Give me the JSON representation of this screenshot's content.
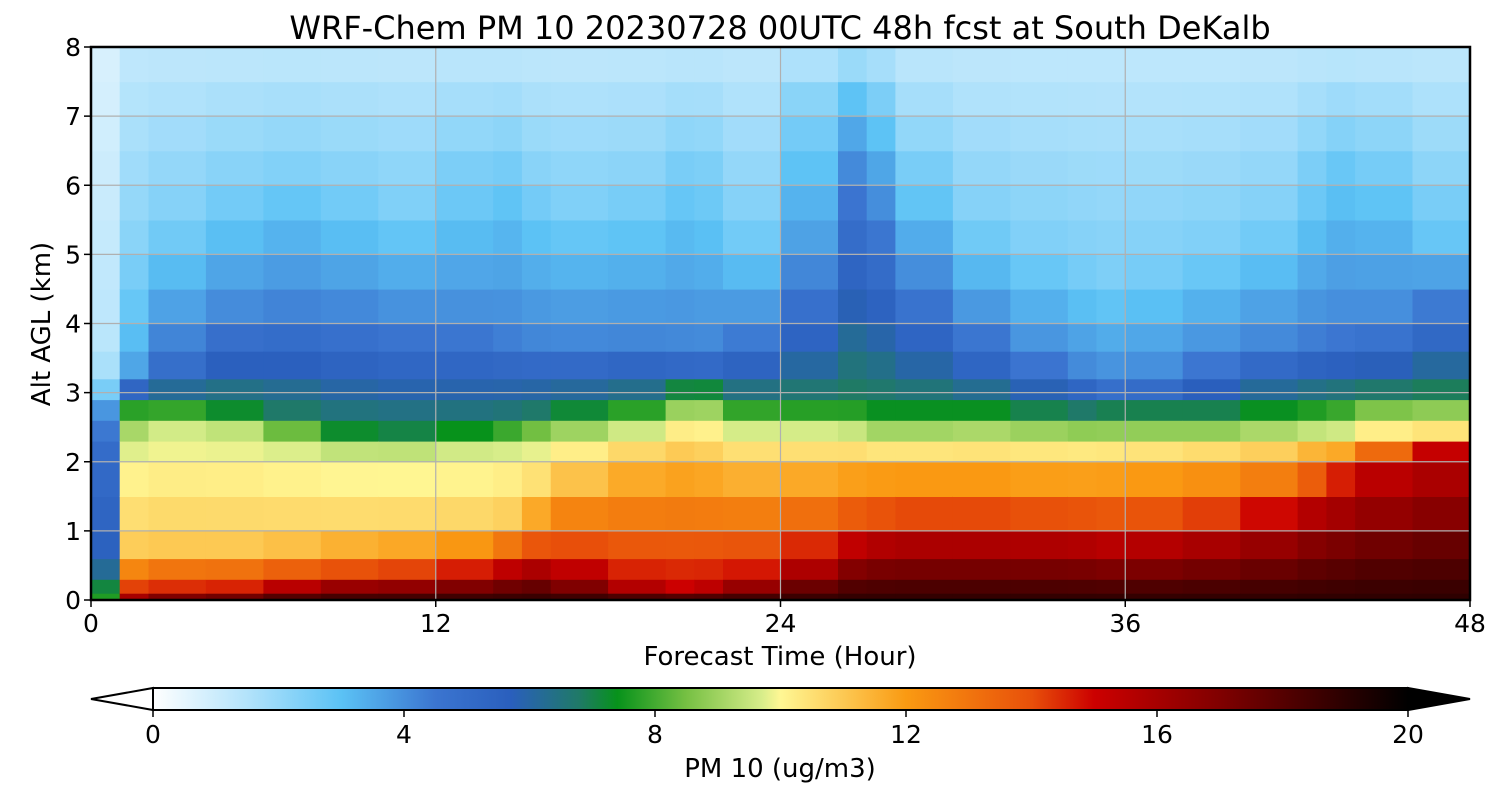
{
  "chart_data": {
    "type": "heatmap",
    "title": "WRF-Chem PM 10  20230728 00UTC 48h fcst at South DeKalb",
    "xlabel": "Forecast Time (Hour)",
    "ylabel": "Alt AGL (km)",
    "x_ticks": [
      "0",
      "12",
      "24",
      "36",
      "48"
    ],
    "y_ticks": [
      "0",
      "1",
      "2",
      "3",
      "4",
      "5",
      "6",
      "7",
      "8"
    ],
    "xlim": [
      0,
      48
    ],
    "ylim": [
      0,
      8
    ],
    "grid": true,
    "x": [
      0,
      1,
      2,
      4,
      6,
      8,
      10,
      12,
      14,
      15,
      16,
      18,
      20,
      21,
      22,
      24,
      26,
      27,
      28,
      30,
      32,
      34,
      35,
      36,
      38,
      40,
      42,
      43,
      44,
      46,
      48
    ],
    "y": [
      0,
      0.1,
      0.3,
      0.6,
      1.0,
      1.5,
      2.0,
      2.3,
      2.6,
      2.9,
      3.2,
      3.6,
      4.0,
      4.5,
      5.0,
      5.5,
      6.0,
      6.5,
      7.0,
      7.5,
      8.0
    ],
    "boundary_heights_km": {
      "red_top": [
        0,
        0.05,
        0.1,
        0.1,
        0.15,
        0.3,
        0.3,
        0.35,
        0.45,
        0.55,
        0.6,
        0.3,
        0.2,
        0.2,
        0.25,
        0.4,
        0.8,
        0.95,
        1.0,
        1.05,
        1.0,
        1.0,
        0.95,
        0.9,
        1.0,
        1.1,
        1.4,
        1.6,
        1.8,
        2.2,
        2.3
      ],
      "orange_top": [
        0,
        0.6,
        0.8,
        0.8,
        0.8,
        0.85,
        0.9,
        0.9,
        1.0,
        1.2,
        1.6,
        2.0,
        2.1,
        2.2,
        2.0,
        1.95,
        2.0,
        2.0,
        2.0,
        2.0,
        2.0,
        1.95,
        2.0,
        2.0,
        2.05,
        2.1,
        2.15,
        2.3,
        2.2,
        2.4,
        2.35
      ],
      "yellow_top": [
        0,
        2.2,
        2.5,
        2.5,
        2.4,
        2.2,
        2.1,
        2.15,
        2.2,
        2.25,
        2.3,
        2.4,
        2.55,
        2.9,
        2.5,
        2.45,
        2.5,
        2.4,
        2.3,
        2.4,
        2.35,
        2.35,
        2.3,
        2.35,
        2.3,
        2.35,
        2.4,
        2.45,
        2.45,
        2.7,
        2.5
      ],
      "green_top": [
        0,
        2.8,
        2.9,
        2.8,
        2.7,
        2.5,
        2.4,
        2.45,
        2.5,
        2.6,
        2.7,
        2.8,
        2.85,
        3.1,
        2.9,
        2.8,
        2.85,
        2.8,
        2.75,
        2.8,
        2.75,
        2.7,
        2.7,
        2.75,
        2.7,
        2.75,
        2.8,
        2.85,
        2.9,
        3.0,
        3.0
      ],
      "blue_top": [
        0,
        3.1,
        3.3,
        4.0,
        4.2,
        4.3,
        4.0,
        4.0,
        3.9,
        3.8,
        3.7,
        3.7,
        3.8,
        3.5,
        3.7,
        4.0,
        6.0,
        6.3,
        5.0,
        4.2,
        3.6,
        3.4,
        3.2,
        3.1,
        3.3,
        3.6,
        3.8,
        3.9,
        3.9,
        4.0,
        4.6
      ],
      "mid_top": [
        0,
        3.5,
        5.0,
        5.5,
        6.0,
        6.0,
        5.5,
        5.5,
        6.5,
        6.0,
        5.5,
        5.5,
        5.8,
        6.5,
        5.5,
        5.0,
        7.5,
        7.6,
        6.5,
        5.5,
        5.0,
        4.8,
        4.5,
        4.5,
        4.8,
        5.0,
        5.5,
        6.5,
        6.5,
        6.0,
        5.0
      ]
    },
    "colorbar": {
      "label": "PM 10  (ug/m3)",
      "min": 0,
      "max": 20,
      "extend": "both",
      "ticks": [
        "0",
        "4",
        "8",
        "12",
        "16",
        "20"
      ],
      "stops": [
        {
          "v": 0,
          "c": "#ffffff"
        },
        {
          "v": 1.5,
          "c": "#b3e3fb"
        },
        {
          "v": 3,
          "c": "#5bc2f5"
        },
        {
          "v": 4.5,
          "c": "#3b75d0"
        },
        {
          "v": 5.7,
          "c": "#2a5fbd"
        },
        {
          "v": 6.8,
          "c": "#1f7a66"
        },
        {
          "v": 7.4,
          "c": "#07921b"
        },
        {
          "v": 8.5,
          "c": "#76c043"
        },
        {
          "v": 9.7,
          "c": "#d7ed8a"
        },
        {
          "v": 10,
          "c": "#fff794"
        },
        {
          "v": 12,
          "c": "#fa9a12"
        },
        {
          "v": 14,
          "c": "#e8500a"
        },
        {
          "v": 15,
          "c": "#cc0000"
        },
        {
          "v": 17,
          "c": "#800000"
        },
        {
          "v": 20,
          "c": "#000000"
        }
      ]
    }
  }
}
